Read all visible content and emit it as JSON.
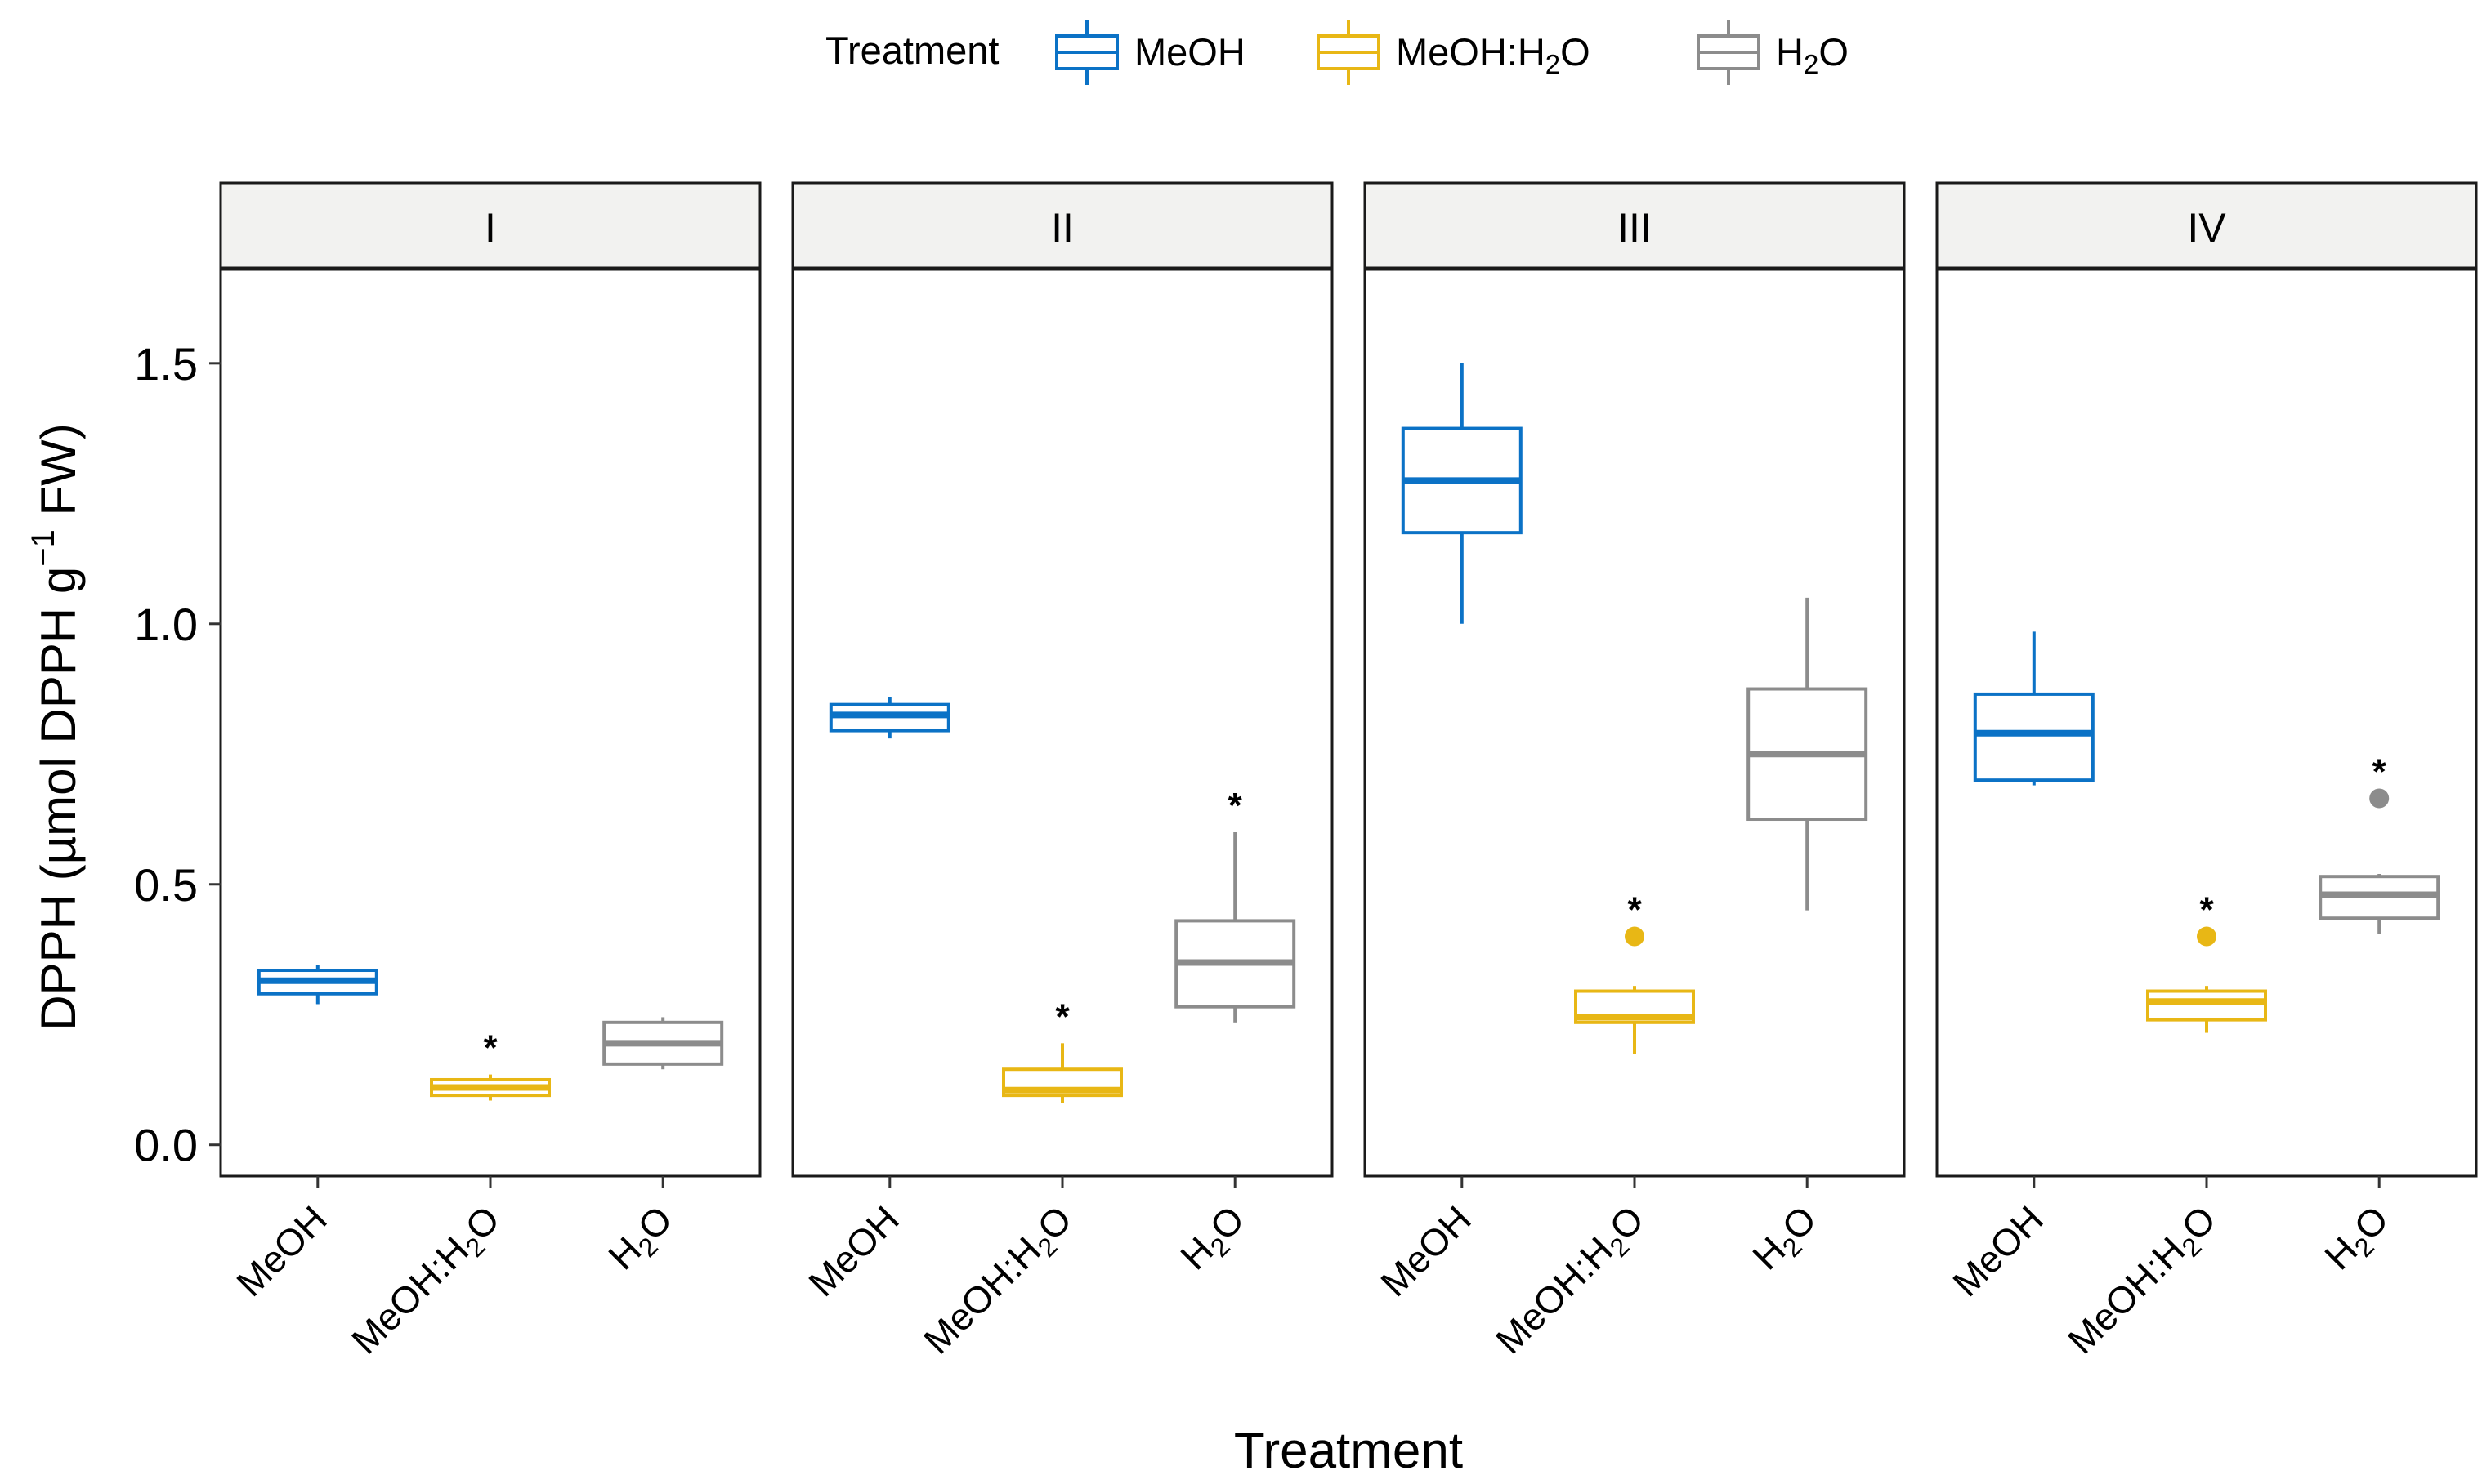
{
  "chart_data": {
    "type": "boxplot",
    "title": "",
    "xlabel": "Treatment",
    "ylabel": "DPPH (µmol DPPH g⁻¹ FW)",
    "ylabel_parts": {
      "main": "DPPH ",
      "open": "(",
      "unit": "µmol DPPH g",
      "sup": "−1",
      "tail": " FW",
      "close": ")"
    },
    "ylim": [
      -0.06,
      1.68
    ],
    "yticks": [
      0.0,
      0.5,
      1.0,
      1.5
    ],
    "ytick_labels": [
      "0.0",
      "0.5",
      "1.0",
      "1.5"
    ],
    "legend": {
      "title": "Treatment",
      "position": "top",
      "entries": [
        {
          "label": "MeOH",
          "main": "MeOH",
          "sub": "",
          "tail": ""
        },
        {
          "label": "MeOH:H2O",
          "main": "MeOH:H",
          "sub": "2",
          "tail": "O"
        },
        {
          "label": "H2O",
          "main": "H",
          "sub": "2",
          "tail": "O"
        }
      ]
    },
    "categories": [
      {
        "label": "MeOH",
        "main": "MeOH",
        "sub": "",
        "tail": ""
      },
      {
        "label": "MeOH:H2O",
        "main": "MeOH:H",
        "sub": "2",
        "tail": "O"
      },
      {
        "label": "H2O",
        "main": "H",
        "sub": "2",
        "tail": "O"
      }
    ],
    "colors": {
      "MeOH": "#0b72c6",
      "MeOH:H2O": "#e8b715",
      "H2O": "#8c8c8c"
    },
    "significance_marker": "*",
    "panels": [
      {
        "label": "I",
        "boxes": [
          {
            "group": "MeOH",
            "whisker_low": 0.27,
            "q1": 0.29,
            "median": 0.315,
            "q3": 0.335,
            "whisker_high": 0.345,
            "outliers": [],
            "significant": false
          },
          {
            "group": "MeOH:H2O",
            "whisker_low": 0.085,
            "q1": 0.095,
            "median": 0.11,
            "q3": 0.125,
            "whisker_high": 0.135,
            "outliers": [],
            "significant": true
          },
          {
            "group": "H2O",
            "whisker_low": 0.145,
            "q1": 0.155,
            "median": 0.195,
            "q3": 0.235,
            "whisker_high": 0.245,
            "outliers": [],
            "significant": false
          }
        ]
      },
      {
        "label": "II",
        "boxes": [
          {
            "group": "MeOH",
            "whisker_low": 0.78,
            "q1": 0.795,
            "median": 0.825,
            "q3": 0.845,
            "whisker_high": 0.86,
            "outliers": [],
            "significant": false
          },
          {
            "group": "MeOH:H2O",
            "whisker_low": 0.08,
            "q1": 0.095,
            "median": 0.105,
            "q3": 0.145,
            "whisker_high": 0.195,
            "outliers": [],
            "significant": true
          },
          {
            "group": "H2O",
            "whisker_low": 0.235,
            "q1": 0.265,
            "median": 0.35,
            "q3": 0.43,
            "whisker_high": 0.6,
            "outliers": [],
            "significant": true
          }
        ]
      },
      {
        "label": "III",
        "boxes": [
          {
            "group": "MeOH",
            "whisker_low": 1.0,
            "q1": 1.175,
            "median": 1.275,
            "q3": 1.375,
            "whisker_high": 1.5,
            "outliers": [],
            "significant": false
          },
          {
            "group": "MeOH:H2O",
            "whisker_low": 0.175,
            "q1": 0.235,
            "median": 0.245,
            "q3": 0.295,
            "whisker_high": 0.305,
            "outliers": [
              0.4
            ],
            "significant": true
          },
          {
            "group": "H2O",
            "whisker_low": 0.45,
            "q1": 0.625,
            "median": 0.75,
            "q3": 0.875,
            "whisker_high": 1.05,
            "outliers": [],
            "significant": false
          }
        ]
      },
      {
        "label": "IV",
        "boxes": [
          {
            "group": "MeOH",
            "whisker_low": 0.69,
            "q1": 0.7,
            "median": 0.79,
            "q3": 0.865,
            "whisker_high": 0.985,
            "outliers": [],
            "significant": false
          },
          {
            "group": "MeOH:H2O",
            "whisker_low": 0.215,
            "q1": 0.24,
            "median": 0.275,
            "q3": 0.295,
            "whisker_high": 0.305,
            "outliers": [
              0.4
            ],
            "significant": true
          },
          {
            "group": "H2O",
            "whisker_low": 0.405,
            "q1": 0.435,
            "median": 0.48,
            "q3": 0.515,
            "whisker_high": 0.52,
            "outliers": [
              0.665
            ],
            "significant": true
          }
        ]
      }
    ]
  }
}
